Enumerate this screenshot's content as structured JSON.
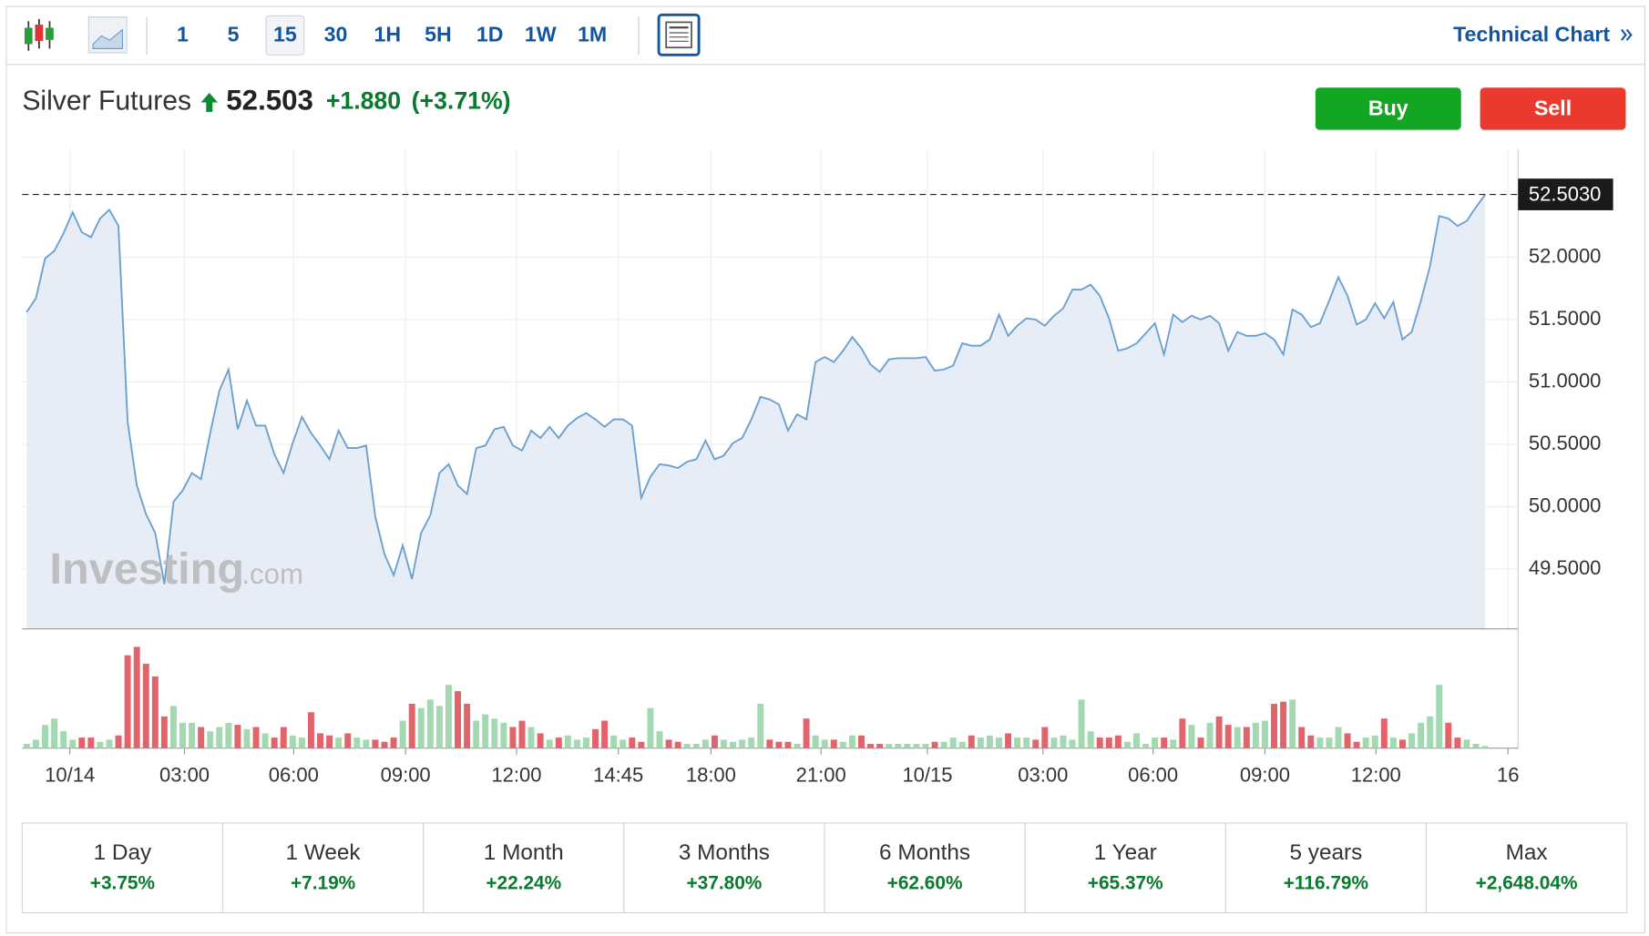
{
  "toolbar": {
    "intervals": [
      "1",
      "5",
      "15",
      "30",
      "1H",
      "5H",
      "1D",
      "1W",
      "1M"
    ],
    "selected": "15",
    "link": "Technical Chart"
  },
  "header": {
    "name": "Silver Futures",
    "price": "52.503",
    "change": "+1.880",
    "change_pct": "(+3.71%)"
  },
  "buttons": {
    "buy": "Buy",
    "sell": "Sell"
  },
  "watermark": {
    "brand": "Investing",
    "suffix": ".com"
  },
  "chart_data": {
    "type": "area",
    "color": "#6a9fcf",
    "fill": "#e6edf6",
    "grid": true,
    "series": [
      {
        "name": "Silver Futures",
        "values": [
          51.56,
          51.67,
          51.99,
          52.05,
          52.19,
          52.36,
          52.2,
          52.16,
          52.31,
          52.38,
          52.25,
          50.68,
          50.17,
          49.94,
          49.79,
          49.38,
          50.04,
          50.13,
          50.27,
          50.22,
          50.59,
          50.93,
          51.1,
          50.62,
          50.85,
          50.65,
          50.65,
          50.42,
          50.27,
          50.51,
          50.72,
          50.59,
          50.49,
          50.38,
          50.61,
          50.47,
          50.47,
          50.49,
          49.92,
          49.62,
          49.45,
          49.69,
          49.42,
          49.79,
          49.93,
          50.27,
          50.34,
          50.17,
          50.1,
          50.47,
          50.49,
          50.62,
          50.64,
          50.49,
          50.45,
          50.61,
          50.55,
          50.64,
          50.55,
          50.65,
          50.71,
          50.75,
          50.7,
          50.64,
          50.7,
          50.7,
          50.65,
          50.07,
          50.24,
          50.34,
          50.33,
          50.31,
          50.36,
          50.38,
          50.53,
          50.38,
          50.41,
          50.51,
          50.55,
          50.7,
          50.88,
          50.86,
          50.82,
          50.61,
          50.74,
          50.7,
          51.16,
          51.2,
          51.16,
          51.25,
          51.36,
          51.27,
          51.14,
          51.08,
          51.18,
          51.19,
          51.19,
          51.19,
          51.2,
          51.09,
          51.1,
          51.13,
          51.31,
          51.29,
          51.29,
          51.34,
          51.54,
          51.37,
          51.45,
          51.51,
          51.5,
          51.45,
          51.53,
          51.59,
          51.74,
          51.74,
          51.78,
          51.69,
          51.51,
          51.25,
          51.27,
          51.31,
          51.39,
          51.47,
          51.22,
          51.54,
          51.48,
          51.53,
          51.5,
          51.53,
          51.47,
          51.25,
          51.4,
          51.37,
          51.37,
          51.39,
          51.34,
          51.22,
          51.58,
          51.54,
          51.44,
          51.47,
          51.65,
          51.84,
          51.69,
          51.46,
          51.5,
          51.63,
          51.51,
          51.64,
          51.34,
          51.4,
          51.65,
          51.93,
          52.33,
          52.31,
          52.25,
          52.29,
          52.4,
          52.5
        ]
      }
    ],
    "volume": {
      "up_color": "#a3d9b1",
      "down_color": "#e0646a",
      "values": [
        4,
        8,
        22,
        28,
        16,
        8,
        10,
        10,
        6,
        8,
        12,
        88,
        96,
        80,
        68,
        30,
        40,
        24,
        24,
        20,
        16,
        20,
        24,
        22,
        18,
        20,
        14,
        10,
        20,
        12,
        10,
        34,
        14,
        12,
        10,
        14,
        10,
        8,
        8,
        6,
        10,
        26,
        42,
        38,
        46,
        40,
        60,
        54,
        42,
        26,
        32,
        28,
        24,
        20,
        26,
        20,
        14,
        8,
        10,
        12,
        8,
        10,
        18,
        26,
        12,
        8,
        10,
        6,
        38,
        16,
        8,
        6,
        4,
        4,
        8,
        12,
        8,
        6,
        8,
        10,
        42,
        8,
        6,
        6,
        4,
        28,
        12,
        8,
        8,
        6,
        12,
        12,
        4,
        4,
        4,
        4,
        4,
        4,
        4,
        6,
        6,
        10,
        6,
        12,
        10,
        12,
        10,
        14,
        10,
        10,
        8,
        20,
        10,
        12,
        8,
        46,
        16,
        10,
        10,
        12,
        6,
        14,
        4,
        10,
        10,
        8,
        28,
        22,
        10,
        24,
        30,
        22,
        20,
        20,
        24,
        26,
        42,
        44,
        46,
        20,
        12,
        10,
        10,
        20,
        14,
        6,
        10,
        12,
        28,
        10,
        8,
        14,
        24,
        30,
        60,
        24,
        10,
        8,
        4,
        2
      ]
    },
    "last_price": {
      "value": 52.503,
      "label": "52.5030"
    },
    "ylim": [
      49.02,
      52.86
    ],
    "yticks": [
      {
        "value": 49.5,
        "label": "49.5000"
      },
      {
        "value": 50.0,
        "label": "50.0000"
      },
      {
        "value": 50.5,
        "label": "50.5000"
      },
      {
        "value": 51.0,
        "label": "51.0000"
      },
      {
        "value": 51.5,
        "label": "51.5000"
      },
      {
        "value": 52.0,
        "label": "52.0000"
      }
    ],
    "xlim": [
      -0.5,
      162.6
    ],
    "xticks": [
      {
        "value": 4.7,
        "label": "10/14"
      },
      {
        "value": 17.2,
        "label": "03:00"
      },
      {
        "value": 29.1,
        "label": "06:00"
      },
      {
        "value": 41.3,
        "label": "09:00"
      },
      {
        "value": 53.4,
        "label": "12:00"
      },
      {
        "value": 64.5,
        "label": "14:45"
      },
      {
        "value": 74.6,
        "label": "18:00"
      },
      {
        "value": 86.6,
        "label": "21:00"
      },
      {
        "value": 98.2,
        "label": "10/15"
      },
      {
        "value": 110.8,
        "label": "03:00"
      },
      {
        "value": 122.8,
        "label": "06:00"
      },
      {
        "value": 135,
        "label": "09:00"
      },
      {
        "value": 147.1,
        "label": "12:00"
      },
      {
        "value": 161.5,
        "label": "16"
      }
    ]
  },
  "periods": [
    {
      "label": "1 Day",
      "change": "+3.75%"
    },
    {
      "label": "1 Week",
      "change": "+7.19%"
    },
    {
      "label": "1 Month",
      "change": "+22.24%"
    },
    {
      "label": "3 Months",
      "change": "+37.80%"
    },
    {
      "label": "6 Months",
      "change": "+62.60%"
    },
    {
      "label": "1 Year",
      "change": "+65.37%"
    },
    {
      "label": "5 years",
      "change": "+116.79%"
    },
    {
      "label": "Max",
      "change": "+2,648.04%"
    }
  ]
}
